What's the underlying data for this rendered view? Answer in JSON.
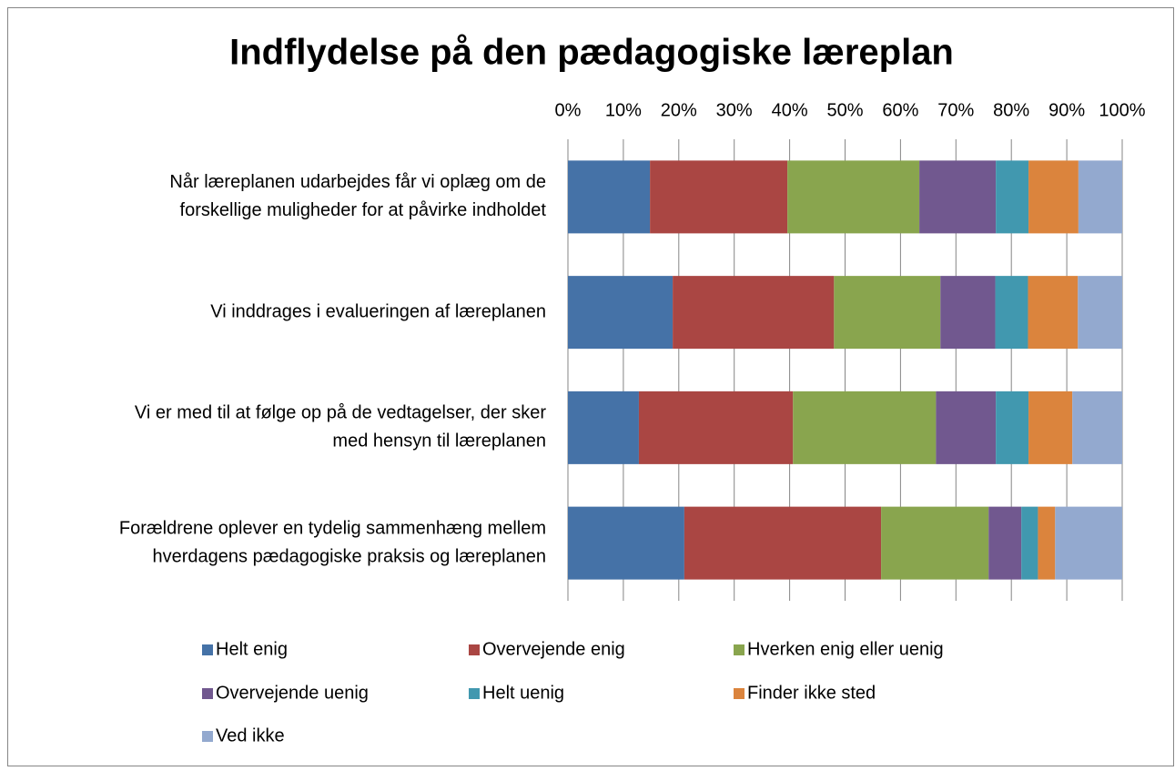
{
  "chart_data": {
    "type": "stacked_bar_horizontal",
    "title": "Indflydelse på den pædagogiske læreplan",
    "categories": [
      [
        "Når læreplanen udarbejdes får vi oplæg om de",
        "forskellige muligheder for at påvirke indholdet"
      ],
      [
        "Vi inddrages i evalueringen af læreplanen"
      ],
      [
        "Vi er med til at følge op på de vedtagelser, der sker",
        "med hensyn til læreplanen"
      ],
      [
        "Forældrene oplever en tydelig sammenhæng mellem",
        "hverdagens pædagogiske praksis og læreplanen"
      ]
    ],
    "series": [
      {
        "name": "Helt enig",
        "color": "#4572a7",
        "values": [
          14.8,
          18.9,
          12.8,
          21.0
        ]
      },
      {
        "name": "Overvejende enig",
        "color": "#aa4643",
        "values": [
          24.8,
          29.1,
          27.8,
          35.5
        ]
      },
      {
        "name": "Hverken enig eller uenig",
        "color": "#89a54e",
        "values": [
          23.8,
          19.2,
          25.8,
          19.4
        ]
      },
      {
        "name": "Overvejende uenig",
        "color": "#71588f",
        "values": [
          13.8,
          9.9,
          10.8,
          5.9
        ]
      },
      {
        "name": "Helt uenig",
        "color": "#4198af",
        "values": [
          5.9,
          5.9,
          5.9,
          3.0
        ]
      },
      {
        "name": "Finder ikke sted",
        "color": "#db843d",
        "values": [
          9.0,
          9.0,
          7.9,
          3.1
        ]
      },
      {
        "name": "Ved ikke",
        "color": "#93a9cf",
        "values": [
          7.9,
          8.0,
          9.0,
          12.1
        ]
      }
    ],
    "xlim": [
      0,
      100
    ],
    "xticks": [
      {
        "value": 0,
        "label": "0%"
      },
      {
        "value": 10,
        "label": "10%"
      },
      {
        "value": 20,
        "label": "20%"
      },
      {
        "value": 30,
        "label": "30%"
      },
      {
        "value": 40,
        "label": "40%"
      },
      {
        "value": 50,
        "label": "50%"
      },
      {
        "value": 60,
        "label": "60%"
      },
      {
        "value": 70,
        "label": "70%"
      },
      {
        "value": 80,
        "label": "80%"
      },
      {
        "value": 90,
        "label": "90%"
      },
      {
        "value": 100,
        "label": "100%"
      }
    ],
    "grid": true,
    "legend": "bottom"
  }
}
